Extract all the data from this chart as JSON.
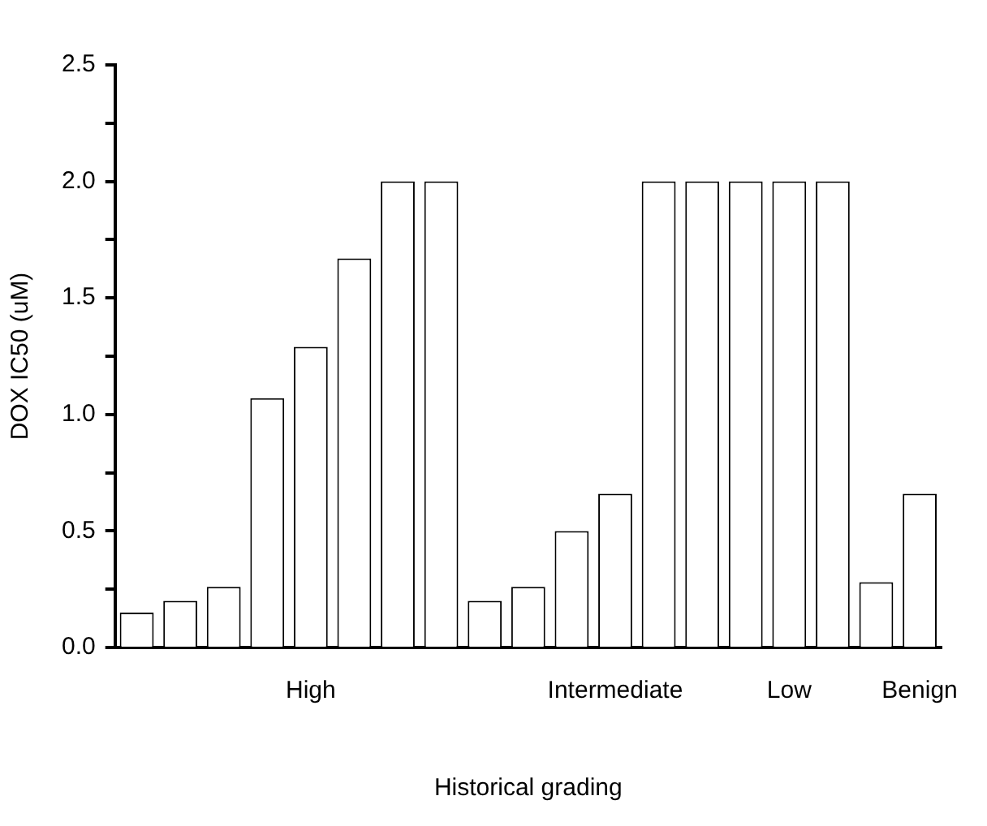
{
  "chart_data": {
    "type": "bar",
    "xlabel": "Historical grading",
    "ylabel": "DOX IC50 (uM)",
    "categories": [
      null,
      null,
      null,
      null,
      "High",
      null,
      null,
      null,
      null,
      null,
      null,
      "Intermediate",
      null,
      null,
      null,
      "Low",
      null,
      null,
      "Benign"
    ],
    "values": [
      0.15,
      0.2,
      0.26,
      1.07,
      1.29,
      1.67,
      2.0,
      2.0,
      0.2,
      0.26,
      0.5,
      0.66,
      2.0,
      2.0,
      2.0,
      2.0,
      2.0,
      0.28,
      0.66
    ],
    "color": "#ffffff",
    "ylim": [
      0,
      2.5
    ],
    "yticks": [
      {
        "value": 0,
        "label": "0.0"
      },
      {
        "value": 0.25,
        "label": null
      },
      {
        "value": 0.5,
        "label": "0.5"
      },
      {
        "value": 0.75,
        "label": null
      },
      {
        "value": 1,
        "label": "1.0"
      },
      {
        "value": 1.25,
        "label": null
      },
      {
        "value": 1.5,
        "label": "1.5"
      },
      {
        "value": 1.75,
        "label": null
      },
      {
        "value": 2,
        "label": "2.0"
      },
      {
        "value": 2.25,
        "label": null
      },
      {
        "value": 2.5,
        "label": "2.5"
      }
    ],
    "grid": false,
    "legend": false
  }
}
